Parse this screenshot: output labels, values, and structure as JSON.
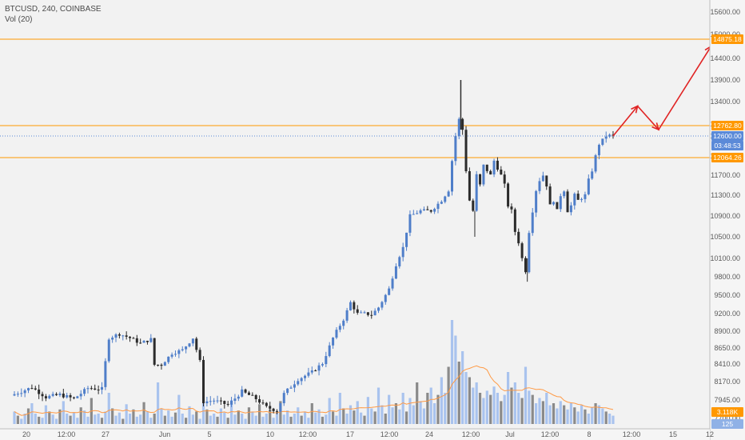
{
  "legend": {
    "symbol": "BTCUSD, 240, COINBASE",
    "indicator": "Vol (20)"
  },
  "chart_data": {
    "type": "candlestick",
    "price_axis": {
      "ylim": [
        7650,
        15850
      ],
      "ticks": [
        15600,
        15000,
        14400,
        13900,
        13400,
        12900,
        12600,
        12100,
        11700,
        11300,
        10900,
        10500,
        10100,
        9800,
        9500,
        9200,
        8900,
        8650,
        8410,
        8170,
        7945,
        7700
      ],
      "tick_labels": [
        "15600.00",
        "15000.00",
        "14400.00",
        "13900.00",
        "13400.00",
        "12900.00",
        "12600.00",
        "12100.00",
        "11700.00",
        "11300.00",
        "10900.00",
        "10500.00",
        "10100.00",
        "9800.00",
        "9500.00",
        "9200.00",
        "8900.00",
        "8650.00",
        "8410.00",
        "8170.00",
        "7945.00",
        "7700.00"
      ]
    },
    "time_axis": {
      "labels": [
        "20",
        "12:00",
        "27",
        "Jun",
        "5",
        "10",
        "12:00",
        "17",
        "12:00",
        "24",
        "12:00",
        "Jul",
        "12:00",
        "8",
        "12:00",
        "15",
        "12"
      ]
    },
    "horizontal_levels": [
      {
        "price": 14875.18,
        "label": "14875.18",
        "color": "#ff9800"
      },
      {
        "price": 12762.8,
        "label": "12762.80",
        "color": "#ff9800"
      },
      {
        "price": 12064.26,
        "label": "12064.26",
        "color": "#ff9800"
      }
    ],
    "current_price": {
      "price": 12600.0,
      "label": "12600.00",
      "countdown": "03:48:53",
      "color": "#5b8ad8"
    },
    "volume_tags": [
      {
        "label": "3.118K",
        "color": "#ff9800"
      },
      {
        "label": "125",
        "color": "#8fb1e6"
      }
    ],
    "projection_path": [
      {
        "index": 171,
        "price": 12600
      },
      {
        "index": 178,
        "price": 13300
      },
      {
        "index": 184,
        "price": 12700
      },
      {
        "index": 199,
        "price": 14700
      }
    ],
    "price_path": [
      [
        0,
        8000
      ],
      [
        6,
        8100
      ],
      [
        10,
        7980
      ],
      [
        14,
        8010
      ],
      [
        18,
        7960
      ],
      [
        22,
        8090
      ],
      [
        26,
        8080
      ],
      [
        28,
        8800
      ],
      [
        31,
        8860
      ],
      [
        34,
        8800
      ],
      [
        37,
        8720
      ],
      [
        40,
        8780
      ],
      [
        41,
        8400
      ],
      [
        43,
        8400
      ],
      [
        46,
        8570
      ],
      [
        49,
        8620
      ],
      [
        52,
        8800
      ],
      [
        54,
        8450
      ],
      [
        55,
        7920
      ],
      [
        58,
        7940
      ],
      [
        62,
        7880
      ],
      [
        66,
        8050
      ],
      [
        70,
        7960
      ],
      [
        73,
        7850
      ],
      [
        76,
        7800
      ],
      [
        78,
        8020
      ],
      [
        82,
        8200
      ],
      [
        86,
        8300
      ],
      [
        89,
        8420
      ],
      [
        92,
        8800
      ],
      [
        95,
        9100
      ],
      [
        97,
        9380
      ],
      [
        99,
        9200
      ],
      [
        101,
        9200
      ],
      [
        103,
        9180
      ],
      [
        105,
        9300
      ],
      [
        108,
        9600
      ],
      [
        110,
        10000
      ],
      [
        112,
        10300
      ],
      [
        114,
        10900
      ],
      [
        117,
        11000
      ],
      [
        120,
        11000
      ],
      [
        123,
        11200
      ],
      [
        125,
        11400
      ],
      [
        127,
        12600
      ],
      [
        128,
        13000
      ],
      [
        129,
        12700
      ],
      [
        130,
        11800
      ],
      [
        131,
        11200
      ],
      [
        132,
        11000
      ],
      [
        133,
        11700
      ],
      [
        134,
        11500
      ],
      [
        135,
        11900
      ],
      [
        137,
        11700
      ],
      [
        138,
        12000
      ],
      [
        140,
        11700
      ],
      [
        141,
        11500
      ],
      [
        142,
        11100
      ],
      [
        143,
        11000
      ],
      [
        144,
        10600
      ],
      [
        145,
        10400
      ],
      [
        146,
        10100
      ],
      [
        147,
        9900
      ],
      [
        148,
        10600
      ],
      [
        149,
        11000
      ],
      [
        150,
        11400
      ],
      [
        151,
        11600
      ],
      [
        152,
        11700
      ],
      [
        153,
        11500
      ],
      [
        154,
        11100
      ],
      [
        155,
        11200
      ],
      [
        156,
        11000
      ],
      [
        157,
        11300
      ],
      [
        158,
        11400
      ],
      [
        159,
        11000
      ],
      [
        160,
        11100
      ],
      [
        161,
        11300
      ],
      [
        162,
        11200
      ],
      [
        163,
        11250
      ],
      [
        164,
        11300
      ],
      [
        165,
        11600
      ],
      [
        166,
        11800
      ],
      [
        167,
        12100
      ],
      [
        168,
        12400
      ],
      [
        169,
        12500
      ],
      [
        170,
        12600
      ],
      [
        171,
        12600
      ]
    ],
    "volume_pattern": [
      0.12,
      0.08,
      0.05,
      0.1,
      0.15,
      0.2,
      0.1,
      0.07,
      0.06,
      0.18,
      0.12,
      0.09,
      0.05,
      0.14,
      0.22,
      0.1,
      0.08,
      0.11,
      0.06,
      0.16,
      0.13,
      0.07,
      0.25,
      0.09,
      0.1,
      0.06,
      0.12,
      0.3,
      0.15,
      0.08,
      0.11,
      0.05,
      0.19,
      0.1,
      0.14,
      0.07,
      0.09,
      0.21,
      0.12,
      0.06,
      0.1,
      0.4,
      0.15,
      0.08,
      0.13,
      0.07,
      0.11,
      0.28,
      0.1,
      0.06,
      0.17,
      0.09,
      0.12,
      0.05,
      0.2,
      0.14,
      0.08,
      0.1,
      0.07,
      0.15,
      0.11,
      0.06,
      0.23,
      0.09,
      0.13,
      0.1,
      0.05,
      0.16,
      0.12,
      0.08,
      0.19,
      0.07,
      0.1,
      0.14,
      0.06,
      0.11,
      0.22,
      0.09,
      0.13,
      0.07,
      0.1,
      0.16,
      0.08,
      0.12,
      0.06,
      0.2,
      0.11,
      0.14,
      0.07,
      0.09,
      0.25,
      0.12,
      0.08,
      0.3,
      0.15,
      0.1,
      0.18,
      0.13,
      0.22,
      0.11,
      0.08,
      0.26,
      0.15,
      0.12,
      0.35,
      0.18,
      0.1,
      0.28,
      0.16,
      0.2,
      0.14,
      0.3,
      0.12,
      0.25,
      0.18,
      0.4,
      0.22,
      0.15,
      0.3,
      0.35,
      0.2,
      0.28,
      0.45,
      0.3,
      0.55,
      1.0,
      0.85,
      0.6,
      0.7,
      0.5,
      0.45,
      0.35,
      0.4,
      0.3,
      0.25,
      0.32,
      0.28,
      0.36,
      0.3,
      0.22,
      0.28,
      0.5,
      0.35,
      0.4,
      0.3,
      0.25,
      0.55,
      0.32,
      0.28,
      0.2,
      0.25,
      0.22,
      0.3,
      0.18,
      0.2,
      0.15,
      0.22,
      0.18,
      0.14,
      0.2,
      0.16,
      0.12,
      0.18,
      0.14,
      0.1,
      0.16,
      0.2,
      0.18,
      0.15,
      0.12,
      0.1,
      0.08,
      0.14,
      0.12
    ]
  }
}
